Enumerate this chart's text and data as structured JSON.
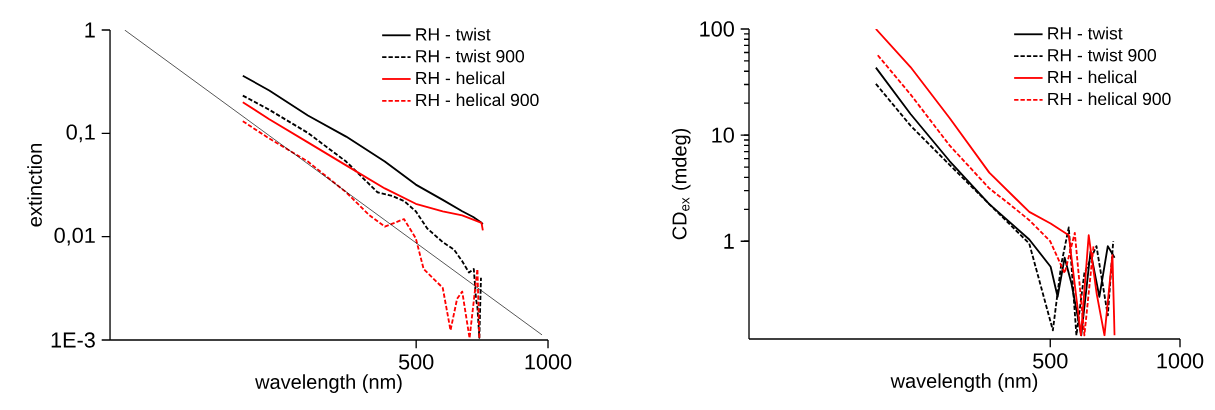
{
  "chart_data": [
    {
      "type": "line",
      "xlabel": "wavelength (nm)",
      "ylabel": "extinction",
      "log": "xy",
      "grid": false,
      "legend": "top right",
      "xlim": [
        100,
        1000
      ],
      "ylim": [
        0.001,
        1
      ],
      "xticks": [
        500,
        1000
      ],
      "yticks": [
        1,
        {
          "value": 0.1,
          "label": "0,1"
        },
        {
          "value": 0.01,
          "label": "0,01"
        },
        {
          "value": 0.001,
          "label": "1E-3"
        }
      ],
      "series": [
        {
          "name": "RH - twist",
          "color": "#000000",
          "line_style": "solid",
          "x": [
            201,
            231,
            283,
            346,
            424,
            499,
            575,
            637,
            675,
            705,
            710
          ],
          "values": [
            0.361,
            0.26,
            0.149,
            0.093,
            0.0533,
            0.0319,
            0.0227,
            0.0176,
            0.0155,
            0.0136,
            0.0132
          ]
        },
        {
          "name": "RH - twist 900",
          "color": "#000000",
          "line_style": "dashed",
          "x": [
            201,
            231,
            283,
            346,
            408,
            442,
            470,
            499,
            530,
            575,
            610,
            637,
            660,
            677,
            685,
            690,
            697,
            703
          ],
          "values": [
            0.232,
            0.169,
            0.101,
            0.0533,
            0.0269,
            0.0247,
            0.022,
            0.0176,
            0.012,
            0.00885,
            0.0075,
            0.00578,
            0.0045,
            0.00486,
            0.0025,
            0.00207,
            0.00105,
            0.004
          ]
        },
        {
          "name": "RH - helical",
          "color": "#ff0000",
          "line_style": "solid",
          "x": [
            201,
            231,
            283,
            346,
            424,
            499,
            575,
            637,
            705,
            710
          ],
          "values": [
            0.2,
            0.137,
            0.0817,
            0.049,
            0.0293,
            0.0208,
            0.0176,
            0.0161,
            0.0136,
            0.0115
          ]
        },
        {
          "name": "RH - helical 900",
          "color": "#ff0000",
          "line_style": "dashed",
          "x": [
            201,
            231,
            283,
            346,
            391,
            424,
            469,
            499,
            520,
            575,
            599,
            620,
            637,
            662,
            690,
            697
          ],
          "values": [
            0.131,
            0.089,
            0.0533,
            0.0269,
            0.0161,
            0.0125,
            0.0148,
            0.00965,
            0.00486,
            0.0032,
            0.00124,
            0.0025,
            0.00294,
            0.00104,
            0.00486,
            0.00105
          ]
        },
        {
          "color": "#000000",
          "line_style": "solid",
          "x": [
            108,
            969
          ],
          "values": [
            1,
            0.00112
          ]
        }
      ]
    },
    {
      "type": "line",
      "xlabel": "wavelength (nm)",
      "ylabel": "CD$_{ex}$ (mdeg)",
      "log": "xy",
      "grid": false,
      "legend": "top right",
      "xlim": [
        100,
        1000
      ],
      "ylim": [
        0.12,
        100
      ],
      "xticks": [
        500,
        1000
      ],
      "yticks": [
        1,
        10,
        100
      ],
      "series": [
        {
          "name": "RH - twist",
          "color": "#000000",
          "line_style": "solid",
          "x": [
            197,
            237,
            292,
            361,
            447,
            501,
            520,
            540,
            560,
            590,
            620,
            650,
            680,
            705
          ],
          "values": [
            43.2,
            15.8,
            5.7,
            2.24,
            1.04,
            0.575,
            0.3,
            0.7,
            0.4,
            0.13,
            0.8,
            0.3,
            0.9,
            0.7
          ]
        },
        {
          "name": "RH - twist 900",
          "color": "#000000",
          "line_style": "dashed",
          "x": [
            197,
            237,
            292,
            361,
            447,
            507,
            530,
            552,
            575,
            600,
            640,
            680,
            700
          ],
          "values": [
            30.4,
            12.3,
            5.25,
            2.24,
            0.95,
            0.145,
            0.6,
            1.35,
            0.13,
            0.5,
            0.9,
            0.2,
            1.0
          ]
        },
        {
          "name": "RH - helical",
          "color": "#ff0000",
          "line_style": "solid",
          "x": [
            197,
            237,
            292,
            361,
            447,
            501,
            552,
            589,
            614,
            641,
            668,
            697,
            705
          ],
          "values": [
            100,
            43.8,
            14.5,
            4.43,
            1.89,
            1.47,
            1.14,
            0.13,
            1.14,
            0.318,
            0.13,
            0.74,
            0.13
          ]
        },
        {
          "name": "RH - helical 900",
          "color": "#ff0000",
          "line_style": "dashed",
          "x": [
            199,
            237,
            292,
            361,
            402,
            447,
            500,
            540,
            570,
            600,
            630
          ],
          "values": [
            56.6,
            24.2,
            8.0,
            3.15,
            2.24,
            1.58,
            1.0,
            0.5,
            1.2,
            0.13,
            0.9
          ]
        }
      ]
    }
  ]
}
